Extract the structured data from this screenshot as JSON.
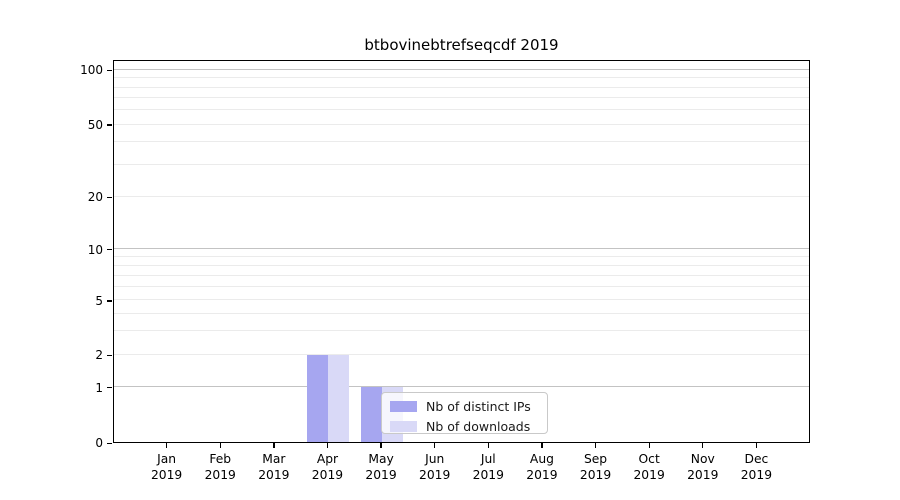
{
  "chart_data": {
    "type": "bar",
    "title": "btbovinebtrefseqcdf 2019",
    "categories": [
      "Jan",
      "Feb",
      "Mar",
      "Apr",
      "May",
      "Jun",
      "Jul",
      "Aug",
      "Sep",
      "Oct",
      "Nov",
      "Dec"
    ],
    "year_label": "2019",
    "series": [
      {
        "name": "Nb of distinct IPs",
        "color": "#a6a6f0",
        "values": [
          0,
          0,
          0,
          2,
          1,
          0,
          0,
          0,
          0,
          0,
          0,
          0
        ]
      },
      {
        "name": "Nb of downloads",
        "color": "#d9d9f7",
        "values": [
          0,
          0,
          0,
          2,
          1,
          0,
          0,
          0,
          0,
          0,
          0,
          0
        ]
      }
    ],
    "y_axis": {
      "scale": "symlog",
      "tick_values": [
        0,
        1,
        2,
        5,
        10,
        20,
        50,
        100
      ],
      "major_grid_values": [
        1,
        10,
        100
      ],
      "labeled_minor_grid_values": [
        2,
        5,
        20,
        50
      ],
      "unlabeled_minor_grid_values": [
        3,
        4,
        6,
        7,
        8,
        9,
        30,
        40,
        60,
        70,
        80,
        90
      ],
      "anchors": [
        {
          "value": 0,
          "frac": 0.0
        },
        {
          "value": 1,
          "frac": 0.1444
        },
        {
          "value": 2,
          "frac": 0.2285
        },
        {
          "value": 5,
          "frac": 0.3708
        },
        {
          "value": 10,
          "frac": 0.5052
        },
        {
          "value": 20,
          "frac": 0.641
        },
        {
          "value": 50,
          "frac": 0.8303
        },
        {
          "value": 100,
          "frac": 0.9726
        }
      ]
    },
    "grid": "horizontal",
    "legend_position": "lower-center"
  },
  "colors": {
    "grid_major": "#c3c3c3",
    "grid_minor": "#ebebeb",
    "spine": "#000000",
    "text": "#000000",
    "legend_border": "#c9c9c9"
  }
}
